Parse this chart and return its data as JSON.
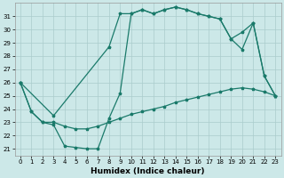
{
  "xlabel": "Humidex (Indice chaleur)",
  "xlim": [
    -0.5,
    23.5
  ],
  "ylim": [
    20.5,
    32
  ],
  "yticks": [
    21,
    22,
    23,
    24,
    25,
    26,
    27,
    28,
    29,
    30,
    31
  ],
  "xticks": [
    0,
    1,
    2,
    3,
    4,
    5,
    6,
    7,
    8,
    9,
    10,
    11,
    12,
    13,
    14,
    15,
    16,
    17,
    18,
    19,
    20,
    21,
    22,
    23
  ],
  "bg_color": "#cce8e8",
  "line_color": "#1a7a6a",
  "grid_color": "#aacccc",
  "line1_x": [
    0,
    1,
    2,
    3,
    4,
    5,
    6,
    7,
    8,
    9,
    10,
    11,
    12,
    13,
    14,
    15,
    16,
    17,
    18,
    19,
    20,
    21,
    22,
    23
  ],
  "line1_y": [
    26.0,
    23.8,
    23.0,
    22.8,
    21.2,
    21.1,
    21.0,
    21.0,
    23.3,
    25.2,
    31.2,
    31.5,
    31.2,
    31.5,
    31.7,
    31.5,
    31.2,
    31.0,
    30.8,
    29.3,
    28.5,
    30.5,
    26.5,
    25.0
  ],
  "line2_x": [
    0,
    3,
    8,
    9,
    10,
    11,
    12,
    13,
    14,
    15,
    16,
    17,
    18,
    19,
    20,
    21,
    22,
    23
  ],
  "line2_y": [
    26.0,
    23.5,
    28.7,
    31.2,
    31.2,
    31.5,
    31.2,
    31.5,
    31.7,
    31.5,
    31.2,
    31.0,
    30.8,
    29.3,
    29.8,
    30.5,
    26.5,
    25.0
  ],
  "line3_x": [
    0,
    1,
    2,
    3,
    4,
    5,
    6,
    7,
    8,
    9,
    10,
    11,
    12,
    13,
    14,
    15,
    16,
    17,
    18,
    19,
    20,
    21,
    22,
    23
  ],
  "line3_y": [
    26.0,
    23.8,
    23.0,
    23.0,
    22.7,
    22.5,
    22.5,
    22.7,
    23.0,
    23.3,
    23.6,
    23.8,
    24.0,
    24.2,
    24.5,
    24.7,
    24.9,
    25.1,
    25.3,
    25.5,
    25.6,
    25.5,
    25.3,
    25.0
  ]
}
